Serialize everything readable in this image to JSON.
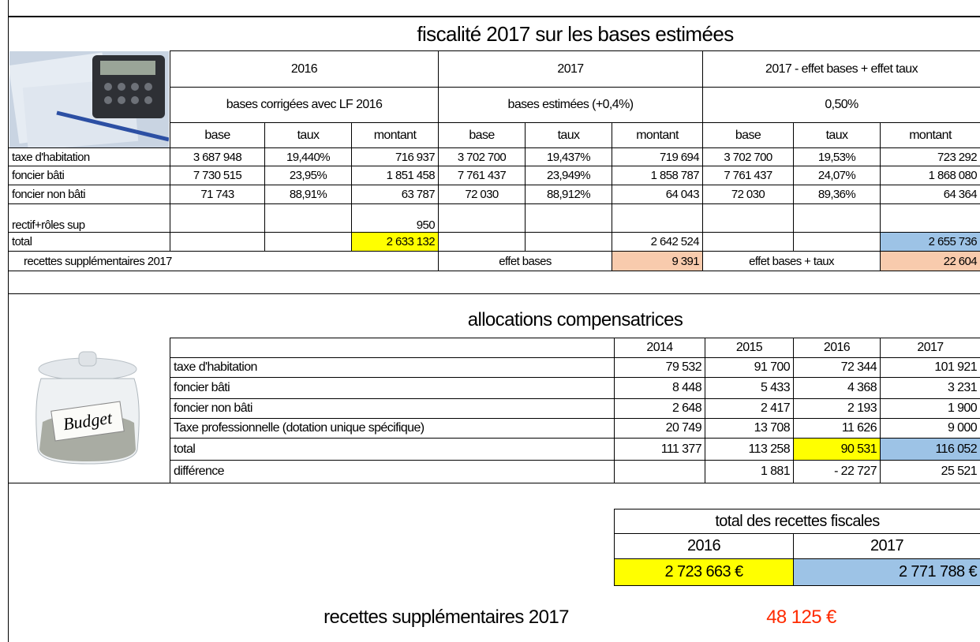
{
  "fiscalite": {
    "title": "fiscalité 2017 sur les bases estimées",
    "groups": [
      {
        "heading": "2016",
        "subheading": "bases corrigées avec LF 2016"
      },
      {
        "heading": "2017",
        "subheading": "bases estimées (+0,4%)"
      },
      {
        "heading": "2017 - effet bases + effet taux",
        "subheading": "0,50%"
      }
    ],
    "columns": [
      "base",
      "taux",
      "montant"
    ],
    "rows": [
      {
        "label": "taxe d'habitation",
        "cells": [
          "3 687 948",
          "19,440%",
          "716 937",
          "3 702 700",
          "19,437%",
          "719 694",
          "3 702 700",
          "19,53%",
          "723 292"
        ]
      },
      {
        "label": "foncier bâti",
        "cells": [
          "7 730 515",
          "23,95%",
          "1 851 458",
          "7 761 437",
          "23,949%",
          "1 858 787",
          "7 761 437",
          "24,07%",
          "1 868 080"
        ]
      },
      {
        "label": "foncier non bâti",
        "cells": [
          "71 743",
          "88,91%",
          "63 787",
          "72 030",
          "88,912%",
          "64 043",
          "72 030",
          "89,36%",
          "64 364"
        ]
      },
      {
        "label": "rectif+rôles sup",
        "cells": [
          null,
          null,
          "950",
          null,
          null,
          null,
          null,
          null,
          null
        ]
      },
      {
        "label": "total",
        "cells": [
          null,
          null,
          "2 633 132",
          null,
          null,
          "2 642 524",
          null,
          null,
          "2 655 736"
        ]
      }
    ],
    "summary": {
      "label": "recettes supplémentaires 2017",
      "effect_bases_label": "effet bases",
      "effect_bases": "9 391",
      "effect_total_label": "effet bases + taux",
      "effect_total": "22 604"
    }
  },
  "allocations": {
    "title": "allocations compensatrices",
    "image_label": "Budget",
    "years": [
      "2014",
      "2015",
      "2016",
      "2017"
    ],
    "rows": [
      {
        "label": "taxe d'habitation",
        "cells": [
          "79 532",
          "91 700",
          "72 344",
          "101 921"
        ]
      },
      {
        "label": "foncier bâti",
        "cells": [
          "8 448",
          "5 433",
          "4 368",
          "3 231"
        ]
      },
      {
        "label": "foncier non bâti",
        "cells": [
          "2 648",
          "2 417",
          "2 193",
          "1 900"
        ]
      },
      {
        "label": "Taxe professionnelle  (dotation unique spécifique)",
        "cells": [
          "20 749",
          "13 708",
          "11 626",
          "9 000"
        ]
      },
      {
        "label": "total",
        "cells": [
          "111 377",
          "113 258",
          "90 531",
          "116 052"
        ]
      },
      {
        "label": "différence",
        "cells": [
          null,
          "1 881",
          "- 22 727",
          "25 521"
        ]
      }
    ]
  },
  "total_box": {
    "title": "total  des recettes fiscales",
    "years": [
      "2016",
      "2017"
    ],
    "values": [
      "2 723 663 €",
      "2 771 788 €"
    ]
  },
  "footer": {
    "label": "recettes supplémentaires 2017",
    "value": "48 125 €"
  }
}
